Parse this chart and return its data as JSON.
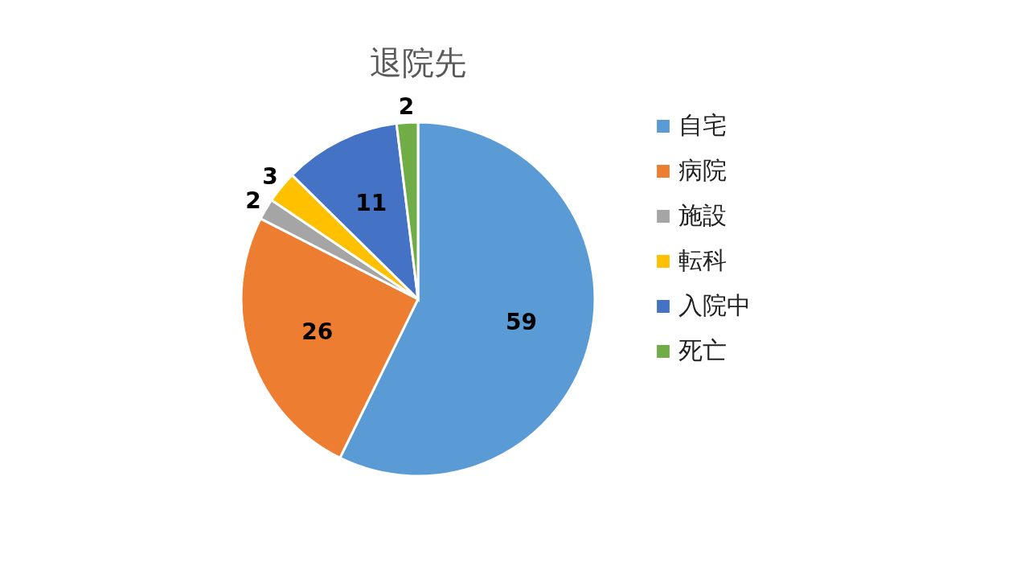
{
  "chart_data": {
    "type": "pie",
    "title": "退院先",
    "categories": [
      "自宅",
      "病院",
      "施設",
      "転科",
      "入院中",
      "死亡"
    ],
    "values": [
      59,
      26,
      2,
      3,
      11,
      2
    ],
    "colors": [
      "#5b9bd5",
      "#ed7d31",
      "#a5a5a5",
      "#ffc000",
      "#4472c4",
      "#70ad47"
    ],
    "data_labels": true,
    "legend": "right"
  }
}
